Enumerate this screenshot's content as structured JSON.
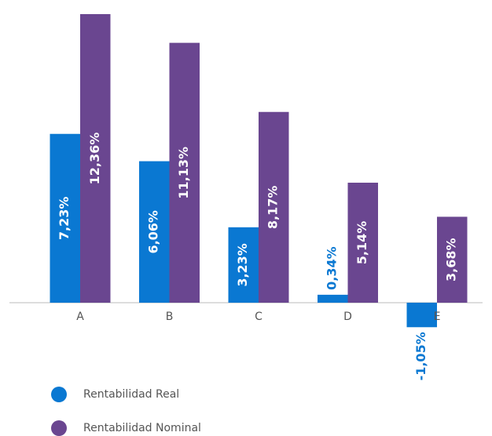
{
  "chart_data": {
    "type": "bar",
    "categories": [
      "A",
      "B",
      "C",
      "D",
      "E"
    ],
    "series": [
      {
        "name": "Rentabilidad Real",
        "color": "#0a78d2",
        "values": [
          7.23,
          6.06,
          3.23,
          0.34,
          -1.05
        ],
        "value_labels": [
          "7,23%",
          "6,06%",
          "3,23%",
          "0,34%",
          "-1,05%"
        ]
      },
      {
        "name": "Rentabilidad Nominal",
        "color": "#6a4690",
        "values": [
          12.36,
          11.13,
          8.17,
          5.14,
          3.68
        ],
        "value_labels": [
          "12,36%",
          "11,13%",
          "8,17%",
          "5,14%",
          "3,68%"
        ]
      }
    ],
    "legend": "bottom-left"
  }
}
